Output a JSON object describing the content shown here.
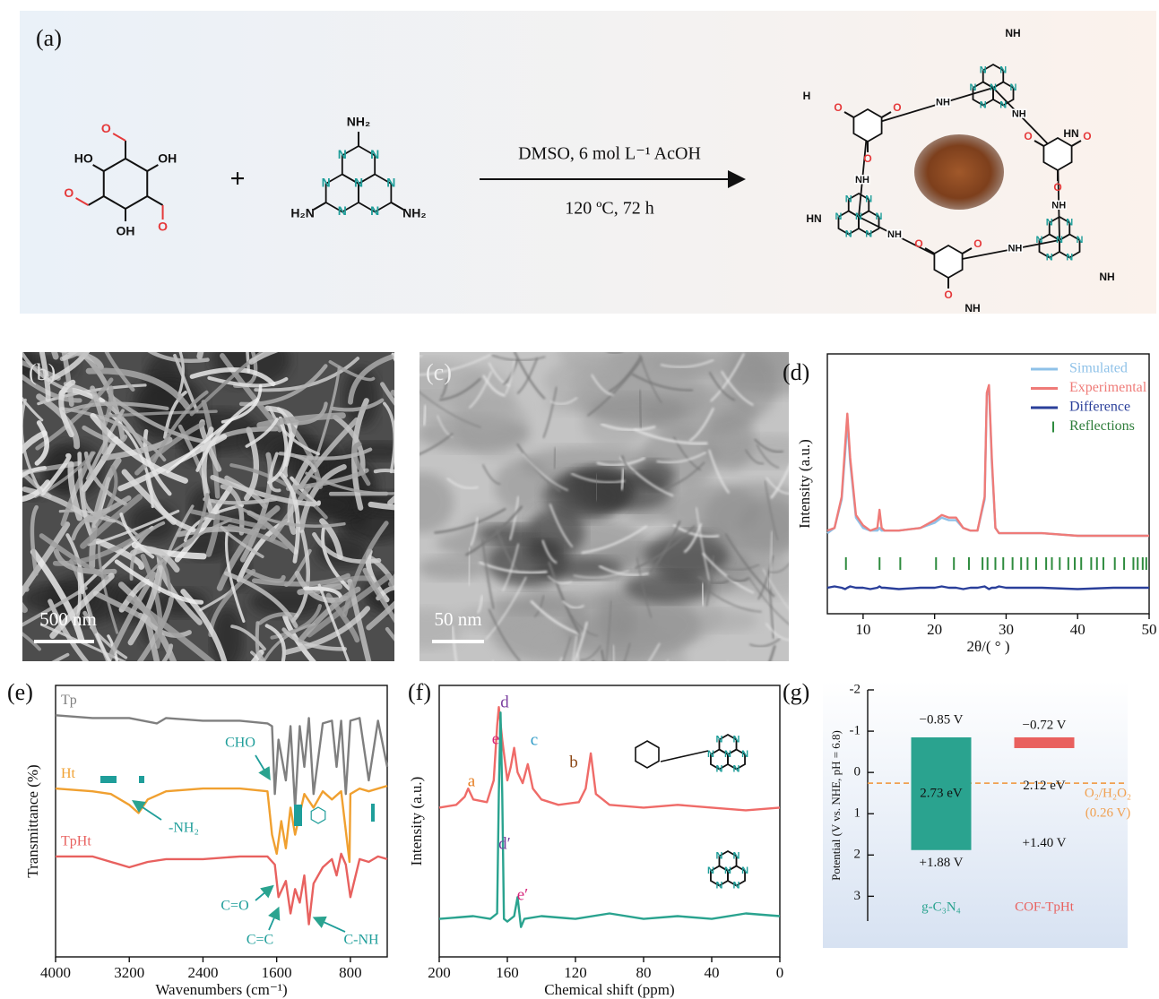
{
  "figure": {
    "panel_labels": [
      "(a)",
      "(b)",
      "(c)",
      "(d)",
      "(e)",
      "(f)",
      "(g)"
    ]
  },
  "scheme": {
    "plus": "+",
    "conditions": "DMSO, 6 mol L⁻¹ AcOH",
    "temperature_time": "120 ºC, 72 h",
    "tp_atoms": {
      "ho": "HO",
      "oh": "OH",
      "o": "O"
    },
    "ht_atoms": {
      "nh2": "NH₂",
      "h2n": "H₂N",
      "n": "N"
    },
    "cof_atoms": {
      "n": "N",
      "o": "O",
      "nh": "NH",
      "hn": "HN",
      "h": "H"
    }
  },
  "micrographs": [
    {
      "scale": "500 nm"
    },
    {
      "scale": "50 nm"
    }
  ],
  "chart_data": [
    {
      "type": "line",
      "x_label": "2θ/( ° )",
      "y_label": "Intensity (a.u.)",
      "xlim": [
        5,
        50
      ],
      "xticks": [
        10,
        20,
        30,
        40,
        50
      ],
      "ylim": [
        0,
        100
      ],
      "x": [
        5,
        6,
        7,
        7.5,
        7.8,
        8.2,
        9,
        10,
        11,
        12,
        12.3,
        12.6,
        13,
        15,
        18,
        20,
        21,
        22,
        23,
        24,
        25,
        26,
        27,
        27.3,
        27.6,
        28,
        28.5,
        29,
        30,
        35,
        40,
        45,
        50
      ],
      "series": [
        {
          "name": "Simulated",
          "color": "#8ec1e8",
          "values": [
            31,
            33,
            44,
            62,
            74,
            58,
            37,
            33,
            32,
            32,
            33,
            32,
            32,
            32,
            33,
            35,
            37,
            36,
            36,
            33,
            32,
            32,
            44,
            84,
            87,
            58,
            33,
            31,
            31,
            31,
            30,
            30,
            30
          ]
        },
        {
          "name": "Experimental",
          "color": "#ef7b78",
          "values": [
            32,
            33,
            45,
            65,
            77,
            60,
            38,
            34,
            32,
            33,
            40,
            33,
            32,
            32,
            33,
            36,
            38,
            37,
            37,
            33,
            32,
            32,
            45,
            85,
            88,
            60,
            33,
            31,
            31,
            31,
            30,
            30,
            30
          ]
        },
        {
          "name": "Difference",
          "color": "#2a3f9a",
          "values": [
            10,
            10.5,
            10,
            9.5,
            10,
            10.5,
            10,
            10,
            9.5,
            10,
            10.5,
            10,
            10,
            9.5,
            10,
            10,
            10.5,
            10,
            10,
            9.5,
            10,
            10,
            10.5,
            10,
            9.5,
            10,
            10,
            10.5,
            10,
            10,
            9.5,
            10,
            10
          ]
        }
      ],
      "reflections": {
        "name": "Reflections",
        "color": "#2e8b3e",
        "x": [
          7.6,
          12.3,
          15.2,
          20.2,
          22.7,
          24.8,
          26.7,
          27.4,
          28.5,
          29.6,
          30.9,
          32.1,
          33.0,
          34.2,
          35.6,
          36.4,
          37.5,
          38.7,
          39.6,
          40.5,
          41.9,
          42.7,
          43.6,
          45.2,
          46.5,
          47.8,
          48.4,
          49.1,
          49.6
        ]
      },
      "legend": "upper right"
    },
    {
      "type": "line",
      "x_label": "Wavenumbers (cm⁻¹)",
      "y_label": "Transmittance (%)",
      "xlim": [
        4000,
        400
      ],
      "xticks": [
        4000,
        3200,
        2400,
        1600,
        800
      ],
      "ylim": [
        0,
        100
      ],
      "series": [
        {
          "name": "Tp",
          "color": "#7f7f7f",
          "x": [
            4000,
            3600,
            3200,
            2900,
            2800,
            2400,
            2000,
            1700,
            1650,
            1620,
            1580,
            1500,
            1450,
            1400,
            1350,
            1300,
            1250,
            1200,
            1100,
            1000,
            950,
            900,
            850,
            800,
            700,
            600,
            500,
            400
          ],
          "values": [
            89,
            88,
            88,
            86,
            88,
            87,
            87,
            86,
            85,
            60,
            80,
            65,
            85,
            55,
            85,
            70,
            88,
            60,
            86,
            87,
            70,
            87,
            60,
            87,
            88,
            65,
            87,
            70
          ]
        },
        {
          "name": "Ht",
          "color": "#f0a030",
          "x": [
            4000,
            3600,
            3400,
            3200,
            3100,
            3000,
            2800,
            2400,
            2000,
            1700,
            1650,
            1600,
            1550,
            1500,
            1450,
            1400,
            1300,
            1200,
            1100,
            1000,
            900,
            810,
            800,
            700,
            600,
            500,
            400
          ],
          "values": [
            62,
            61,
            60,
            56,
            53,
            58,
            61,
            62,
            62,
            61,
            45,
            38,
            50,
            40,
            55,
            45,
            60,
            55,
            61,
            58,
            61,
            35,
            60,
            62,
            61,
            62,
            63
          ]
        },
        {
          "name": "TpHt",
          "color": "#e8615f",
          "x": [
            4000,
            3600,
            3200,
            3000,
            2800,
            2400,
            2000,
            1700,
            1620,
            1580,
            1500,
            1450,
            1400,
            1350,
            1300,
            1250,
            1200,
            1100,
            1000,
            950,
            900,
            850,
            800,
            700,
            600,
            500,
            400
          ],
          "values": [
            37,
            37,
            33,
            35,
            36,
            36,
            37,
            37,
            34,
            22,
            28,
            16,
            25,
            20,
            30,
            12,
            27,
            33,
            36,
            30,
            38,
            34,
            22,
            36,
            35,
            37,
            36
          ]
        }
      ],
      "annotations": [
        "CHO",
        "-NH₂",
        "C=O",
        "C=C",
        "C-NH"
      ]
    },
    {
      "type": "line",
      "x_label": "Chemical shift (ppm)",
      "y_label": "Intensity (a.u.)",
      "xlim": [
        200,
        0
      ],
      "xticks": [
        200,
        160,
        120,
        80,
        40,
        0
      ],
      "ylim": [
        0,
        100
      ],
      "series": [
        {
          "color": "#ef6b68",
          "x": [
            200,
            190,
            185,
            183,
            180,
            172,
            168,
            166,
            165,
            163,
            160,
            158,
            156,
            154,
            151,
            148,
            145,
            140,
            130,
            118,
            114,
            111,
            108,
            100,
            80,
            60,
            40,
            20,
            0
          ],
          "values": [
            55,
            56,
            59,
            62,
            58,
            57,
            65,
            85,
            92,
            80,
            65,
            70,
            77,
            68,
            64,
            71,
            62,
            58,
            56,
            57,
            62,
            75,
            60,
            56,
            55,
            56,
            55,
            54,
            55
          ]
        },
        {
          "color": "#2aa38f",
          "x": [
            200,
            180,
            170,
            166,
            165,
            164,
            163,
            162,
            160,
            156,
            154,
            152,
            150,
            140,
            120,
            100,
            80,
            60,
            40,
            20,
            0
          ],
          "values": [
            14,
            15,
            14,
            16,
            60,
            90,
            60,
            14,
            13,
            15,
            22,
            11,
            14,
            15,
            14,
            16,
            14,
            15,
            14,
            16,
            15
          ]
        }
      ],
      "peak_labels": [
        "a",
        "d",
        "e",
        "c",
        "b",
        "d′",
        "e′"
      ]
    },
    {
      "type": "band",
      "y_label": "Potential (V vs. NHE, pH = 6.8)",
      "ylim": [
        -2,
        3.6
      ],
      "yticks": [
        -2,
        -1,
        0,
        1,
        2,
        3
      ],
      "categories": [
        "g-C₃N₄",
        "COF-TpHt"
      ],
      "colors": [
        "#2aa38f",
        "#e9605e"
      ],
      "bar_style": [
        "band",
        "level"
      ],
      "cb": {
        "values": [
          -0.85,
          -0.72
        ],
        "value_labels": [
          "−0.85 V",
          "−0.72 V"
        ]
      },
      "vb": {
        "values": [
          1.88,
          1.4
        ],
        "value_labels": [
          "+1.88 V",
          "+1.40 V"
        ]
      },
      "gap": {
        "values": [
          2.73,
          2.12
        ],
        "value_labels": [
          "2.73 eV",
          "2.12 eV"
        ]
      },
      "reference": {
        "value": 0.26,
        "label": "O₂/H₂O₂",
        "sublabel": "(0.26 V)",
        "color": "#f0a050"
      }
    }
  ]
}
